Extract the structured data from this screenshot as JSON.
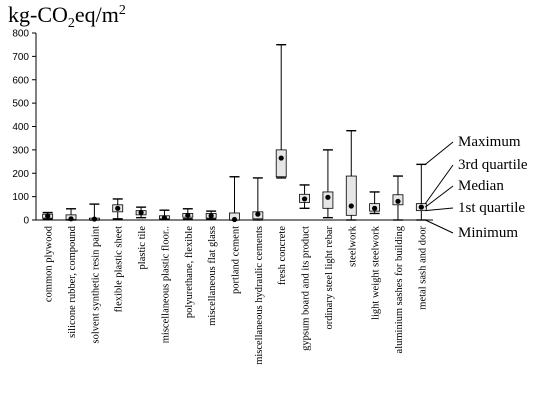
{
  "chart_data": {
    "type": "boxplot",
    "unit_label": {
      "base": "kg-CO",
      "sub": "2",
      "mid": "eq/m",
      "sup": "2"
    },
    "y_ticks": [
      0,
      100,
      200,
      300,
      400,
      500,
      600,
      700,
      800
    ],
    "ylim": [
      0,
      800
    ],
    "grid": false,
    "categories": [
      "common plywood",
      "silicone rubber, compound",
      "solvent synthetic resin paint",
      "flexible plastic sheet",
      "plastic tile",
      "miscellaneous plastic floor..",
      "polyurethane, flexible",
      "miscellaneous flat glass",
      "portland cement",
      "miscellaneous hydraulic cements",
      "fresh concrete",
      "gypsum board and its product",
      "ordinary steel light rebar",
      "steelwork",
      "light weight steelwork",
      "aluminium sashes for building",
      "metal sash and door"
    ],
    "boxes": [
      {
        "min": 3,
        "q1": 8,
        "median": 17,
        "q3": 25,
        "max": 32
      },
      {
        "min": 0,
        "q1": 2,
        "median": 5,
        "q3": 22,
        "max": 48
      },
      {
        "min": 0,
        "q1": 1,
        "median": 4,
        "q3": 8,
        "max": 68
      },
      {
        "min": 5,
        "q1": 35,
        "median": 50,
        "q3": 65,
        "max": 90
      },
      {
        "min": 10,
        "q1": 22,
        "median": 32,
        "q3": 40,
        "max": 55
      },
      {
        "min": 2,
        "q1": 5,
        "median": 10,
        "q3": 18,
        "max": 42
      },
      {
        "min": 5,
        "q1": 12,
        "median": 20,
        "q3": 28,
        "max": 48
      },
      {
        "min": 3,
        "q1": 8,
        "median": 18,
        "q3": 28,
        "max": 38
      },
      {
        "min": 0,
        "q1": 0,
        "median": 2,
        "q3": 30,
        "max": 185
      },
      {
        "min": 0,
        "q1": 5,
        "median": 25,
        "q3": 35,
        "max": 180
      },
      {
        "min": 180,
        "q1": 185,
        "median": 265,
        "q3": 300,
        "max": 750
      },
      {
        "min": 50,
        "q1": 75,
        "median": 90,
        "q3": 110,
        "max": 150
      },
      {
        "min": 10,
        "q1": 50,
        "median": 97,
        "q3": 120,
        "max": 300
      },
      {
        "min": 0,
        "q1": 20,
        "median": 60,
        "q3": 188,
        "max": 382
      },
      {
        "min": 28,
        "q1": 38,
        "median": 50,
        "q3": 70,
        "max": 120
      },
      {
        "min": 0,
        "q1": 65,
        "median": 80,
        "q3": 108,
        "max": 188
      },
      {
        "min": 0,
        "q1": 40,
        "median": 55,
        "q3": 70,
        "max": 238
      }
    ],
    "legend": {
      "target_index": 16,
      "labels": [
        "Maximum",
        "3rd quartile",
        "Median",
        "1st quartile",
        "Minimum"
      ]
    }
  }
}
